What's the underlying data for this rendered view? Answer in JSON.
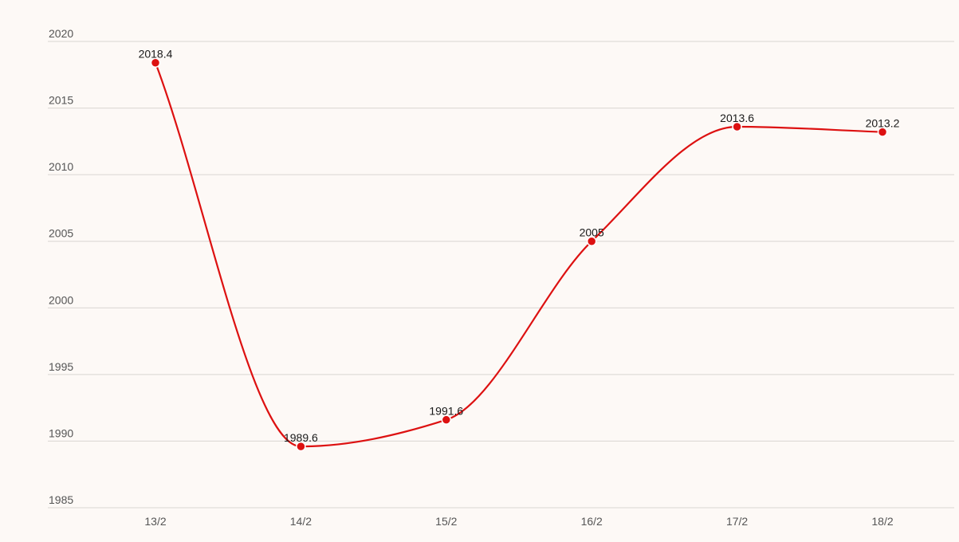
{
  "chart_data": {
    "type": "line",
    "title": "",
    "xlabel": "",
    "ylabel": "",
    "categories": [
      "13/2",
      "14/2",
      "15/2",
      "16/2",
      "17/2",
      "18/2"
    ],
    "series": [
      {
        "values": [
          2018.4,
          1989.6,
          1991.6,
          2005,
          2013.6,
          2013.2
        ],
        "labels": [
          "2018.4",
          "1989.6",
          "1991.6",
          "2005",
          "2013.6",
          "2013.2"
        ],
        "color": "#dd1111"
      }
    ],
    "ylim": [
      1985,
      2020
    ],
    "yticks": [
      1985,
      1990,
      1995,
      2000,
      2005,
      2010,
      2015,
      2020
    ],
    "ytick_labels": [
      "1985",
      "1990",
      "1995",
      "2000",
      "2005",
      "2010",
      "2015",
      "2020"
    ],
    "grid": true,
    "smooth": true,
    "background": "#fdf9f6"
  }
}
